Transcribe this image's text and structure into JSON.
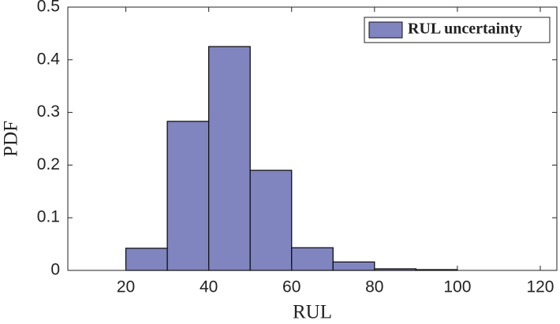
{
  "chart_data": {
    "type": "histogram",
    "xlabel": "RUL",
    "ylabel": "PDF",
    "bins": [
      20,
      30,
      40,
      50,
      60,
      70,
      80,
      90,
      100
    ],
    "series": [
      {
        "name": "RUL uncertainty",
        "color": "#8085c0",
        "values": [
          0.042,
          0.283,
          0.425,
          0.19,
          0.043,
          0.016,
          0.003,
          0.0015
        ]
      }
    ],
    "xlim": [
      6,
      124
    ],
    "xticks": [
      20,
      40,
      60,
      80,
      100,
      120
    ],
    "ylim": [
      0,
      0.5
    ],
    "yticks": [
      0,
      0.1,
      0.2,
      0.3,
      0.4,
      0.5
    ],
    "grid": false,
    "legend": "northeast"
  }
}
